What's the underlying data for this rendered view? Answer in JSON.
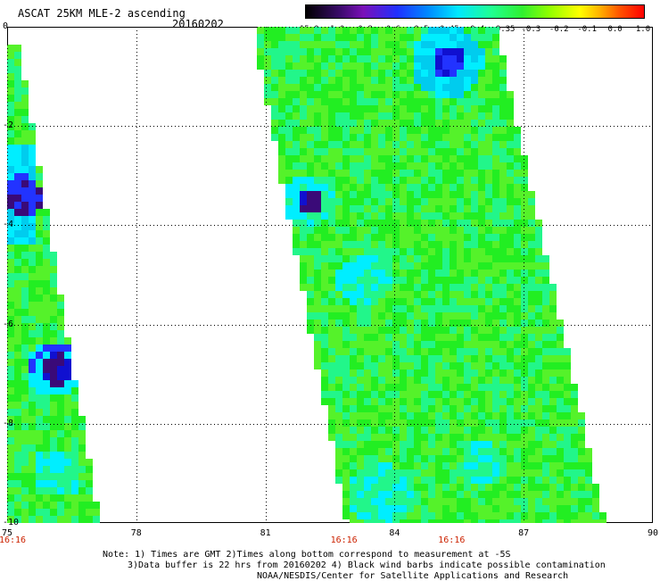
{
  "header": {
    "title": "ASCAT 25KM MLE-2 ascending",
    "date": "20160202"
  },
  "colorbar": {
    "labels": [
      "-15.0",
      "-1.0",
      "-0.8",
      "-0.6",
      "-0.5",
      "-0.45",
      "-0.4",
      "-0.35",
      "-0.3",
      "-0.2",
      "-0.1",
      "0.0",
      "1.0"
    ],
    "colors": [
      "#000000",
      "#3a0a6a",
      "#7a10b8",
      "#2030ff",
      "#0088ff",
      "#00e8ff",
      "#20ff90",
      "#30f030",
      "#90ff00",
      "#ffff00",
      "#ffb000",
      "#ff5000",
      "#ff0000"
    ]
  },
  "axes": {
    "x_ticks": [
      "75",
      "78",
      "81",
      "84",
      "87",
      "90"
    ],
    "y_ticks": [
      "0",
      "-2",
      "-4",
      "-6",
      "-8",
      "-10"
    ],
    "lon_range": [
      75,
      90
    ],
    "lat_range": [
      0,
      -10
    ]
  },
  "pass_times": [
    {
      "label": "16:16",
      "lon": 75
    },
    {
      "label": "16:16",
      "lon": 82.7
    },
    {
      "label": "16:16",
      "lon": 85.2
    }
  ],
  "notes": {
    "line1": "Note: 1) Times are GMT 2)Times along bottom correspond to measurement at -5S",
    "line2": "3)Data buffer is 22 hrs from 20160202 4) Black wind barbs indicate possible contamination",
    "line3": "NOAA/NESDIS/Center for Satellite Applications and Research"
  }
}
